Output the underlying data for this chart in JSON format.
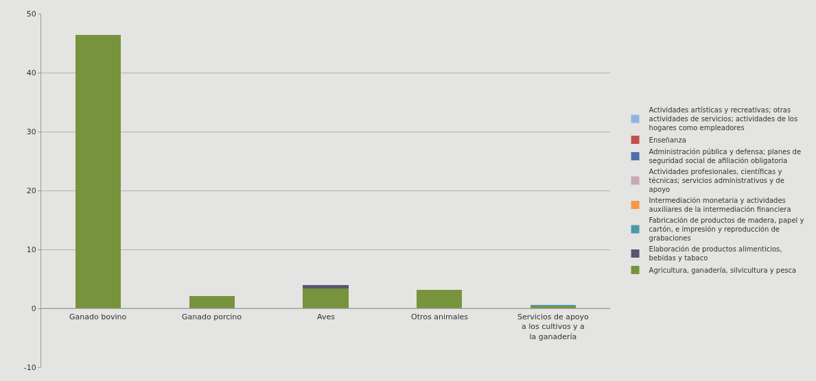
{
  "chart_data": {
    "type": "bar",
    "stacked": true,
    "categories": [
      "Ganado bovino",
      "Ganado porcino",
      "Aves",
      "Otros animales",
      "Servicios de apoyo a los cultivos y a la ganadería"
    ],
    "series": [
      {
        "name": "Agricultura, ganadería, silvicultura y pesca",
        "color": "#77933c",
        "values": [
          46.4,
          2.1,
          3.4,
          3.1,
          0.3
        ]
      },
      {
        "name": "Elaboración de productos alimenticios, bebidas y tabaco",
        "color": "#5a5570",
        "values": [
          0,
          0,
          0.6,
          0,
          0
        ]
      },
      {
        "name": "Fabricación de productos de madera, papel y cartón, e impresión y reproducción de grabaciones",
        "color": "#4b9aa8",
        "values": [
          0,
          0,
          0,
          0,
          0.3
        ]
      },
      {
        "name": "Intermediación monetaria y actividades auxiliares de la intermediación financiera",
        "color": "#f79646",
        "values": [
          0,
          0,
          0,
          0,
          0
        ]
      },
      {
        "name": "Actividades profesionales, científicas y técnicas; servicios administrativos y de apoyo",
        "color": "#c9a6b8",
        "values": [
          0,
          0,
          0,
          0,
          0
        ]
      },
      {
        "name": "Administración pública y defensa; planes de seguridad social de afiliación obligatoria",
        "color": "#4f6fa8",
        "values": [
          0,
          0,
          0,
          0,
          0
        ]
      },
      {
        "name": "Enseñanza",
        "color": "#c0504d",
        "values": [
          0,
          0,
          0,
          0,
          0
        ]
      },
      {
        "name": "Actividades artísticas y recreativas; otras actividades de servicios; actividades de los hogares como empleadores",
        "color": "#8eb4e3",
        "values": [
          0,
          0,
          0,
          0,
          0
        ]
      }
    ],
    "ylim": [
      -10,
      50
    ],
    "yticks": [
      -10,
      0,
      10,
      20,
      30,
      40,
      50
    ],
    "grid": "y",
    "legend": "right"
  }
}
